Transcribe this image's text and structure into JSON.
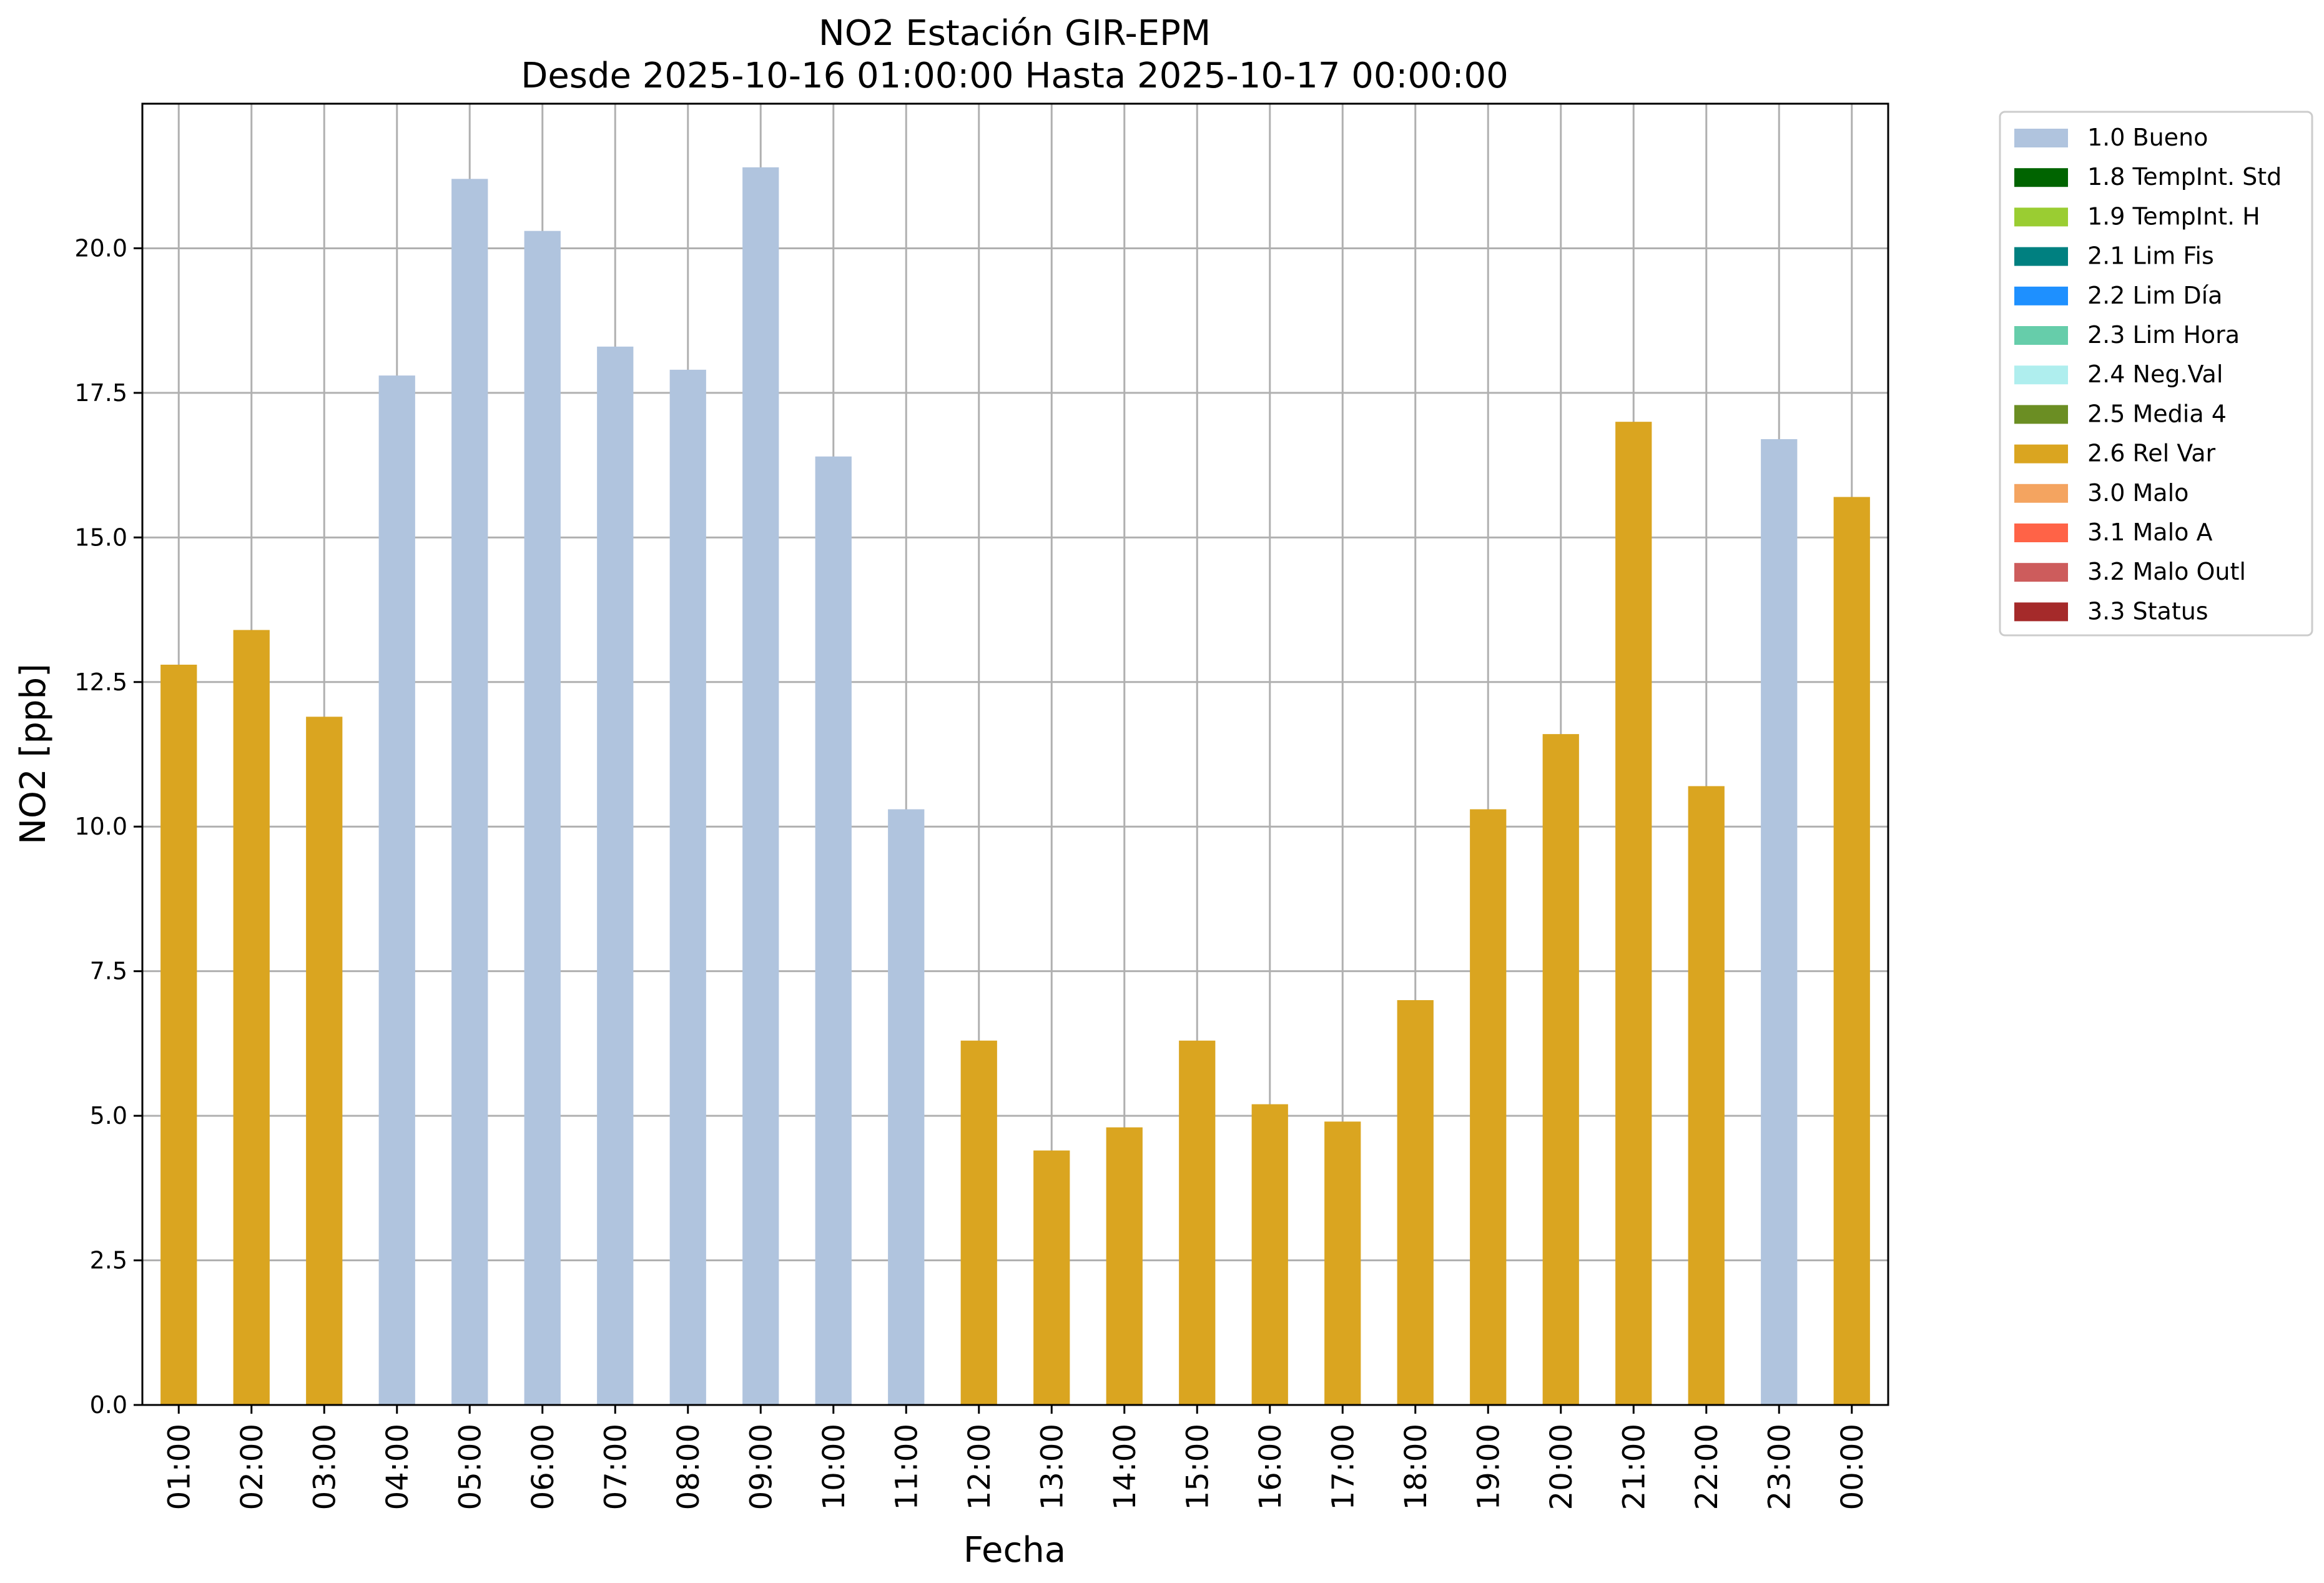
{
  "chart_data": {
    "type": "bar",
    "title": "NO2 Estación GIR-EPM",
    "subtitle": "Desde 2025-10-16 01:00:00 Hasta 2025-10-17 00:00:00",
    "xlabel": "Fecha",
    "ylabel": "NO2 [ppb]",
    "ylim": [
      0,
      22.5
    ],
    "yticks": [
      "0.0",
      "2.5",
      "5.0",
      "7.5",
      "10.0",
      "12.5",
      "15.0",
      "17.5",
      "20.0"
    ],
    "grid": true,
    "legend_position": "outside-top-right",
    "categories": [
      "01:00",
      "02:00",
      "03:00",
      "04:00",
      "05:00",
      "06:00",
      "07:00",
      "08:00",
      "09:00",
      "10:00",
      "11:00",
      "12:00",
      "13:00",
      "14:00",
      "15:00",
      "16:00",
      "17:00",
      "18:00",
      "19:00",
      "20:00",
      "21:00",
      "22:00",
      "23:00",
      "00:00"
    ],
    "values": [
      12.8,
      13.4,
      11.9,
      17.8,
      21.2,
      20.3,
      18.3,
      17.9,
      21.4,
      16.4,
      10.3,
      6.3,
      4.4,
      4.8,
      6.3,
      5.2,
      4.9,
      7.0,
      10.3,
      11.6,
      17.0,
      10.7,
      16.7,
      15.7
    ],
    "bar_flags": [
      "2.6 Rel Var",
      "2.6 Rel Var",
      "2.6 Rel Var",
      "1.0 Bueno",
      "1.0 Bueno",
      "1.0 Bueno",
      "1.0 Bueno",
      "1.0 Bueno",
      "1.0 Bueno",
      "1.0 Bueno",
      "1.0 Bueno",
      "2.6 Rel Var",
      "2.6 Rel Var",
      "2.6 Rel Var",
      "2.6 Rel Var",
      "2.6 Rel Var",
      "2.6 Rel Var",
      "2.6 Rel Var",
      "2.6 Rel Var",
      "2.6 Rel Var",
      "2.6 Rel Var",
      "2.6 Rel Var",
      "1.0 Bueno",
      "2.6 Rel Var"
    ],
    "legend": [
      {
        "label": "1.0 Bueno",
        "color": "#b0c4de"
      },
      {
        "label": "1.8 TempInt. Std",
        "color": "#006400"
      },
      {
        "label": "1.9 TempInt. H",
        "color": "#9acd32"
      },
      {
        "label": "2.1 Lim Fis",
        "color": "#008080"
      },
      {
        "label": "2.2 Lim Día",
        "color": "#1e90ff"
      },
      {
        "label": "2.3 Lim Hora",
        "color": "#66cdaa"
      },
      {
        "label": "2.4 Neg.Val",
        "color": "#afeeee"
      },
      {
        "label": "2.5 Media 4",
        "color": "#6b8e23"
      },
      {
        "label": "2.6 Rel Var",
        "color": "#daa520"
      },
      {
        "label": "3.0 Malo",
        "color": "#f4a460"
      },
      {
        "label": "3.1 Malo A",
        "color": "#ff6347"
      },
      {
        "label": "3.2 Malo Outl",
        "color": "#cd5c5c"
      },
      {
        "label": "3.3 Status",
        "color": "#a52a2a"
      }
    ]
  }
}
